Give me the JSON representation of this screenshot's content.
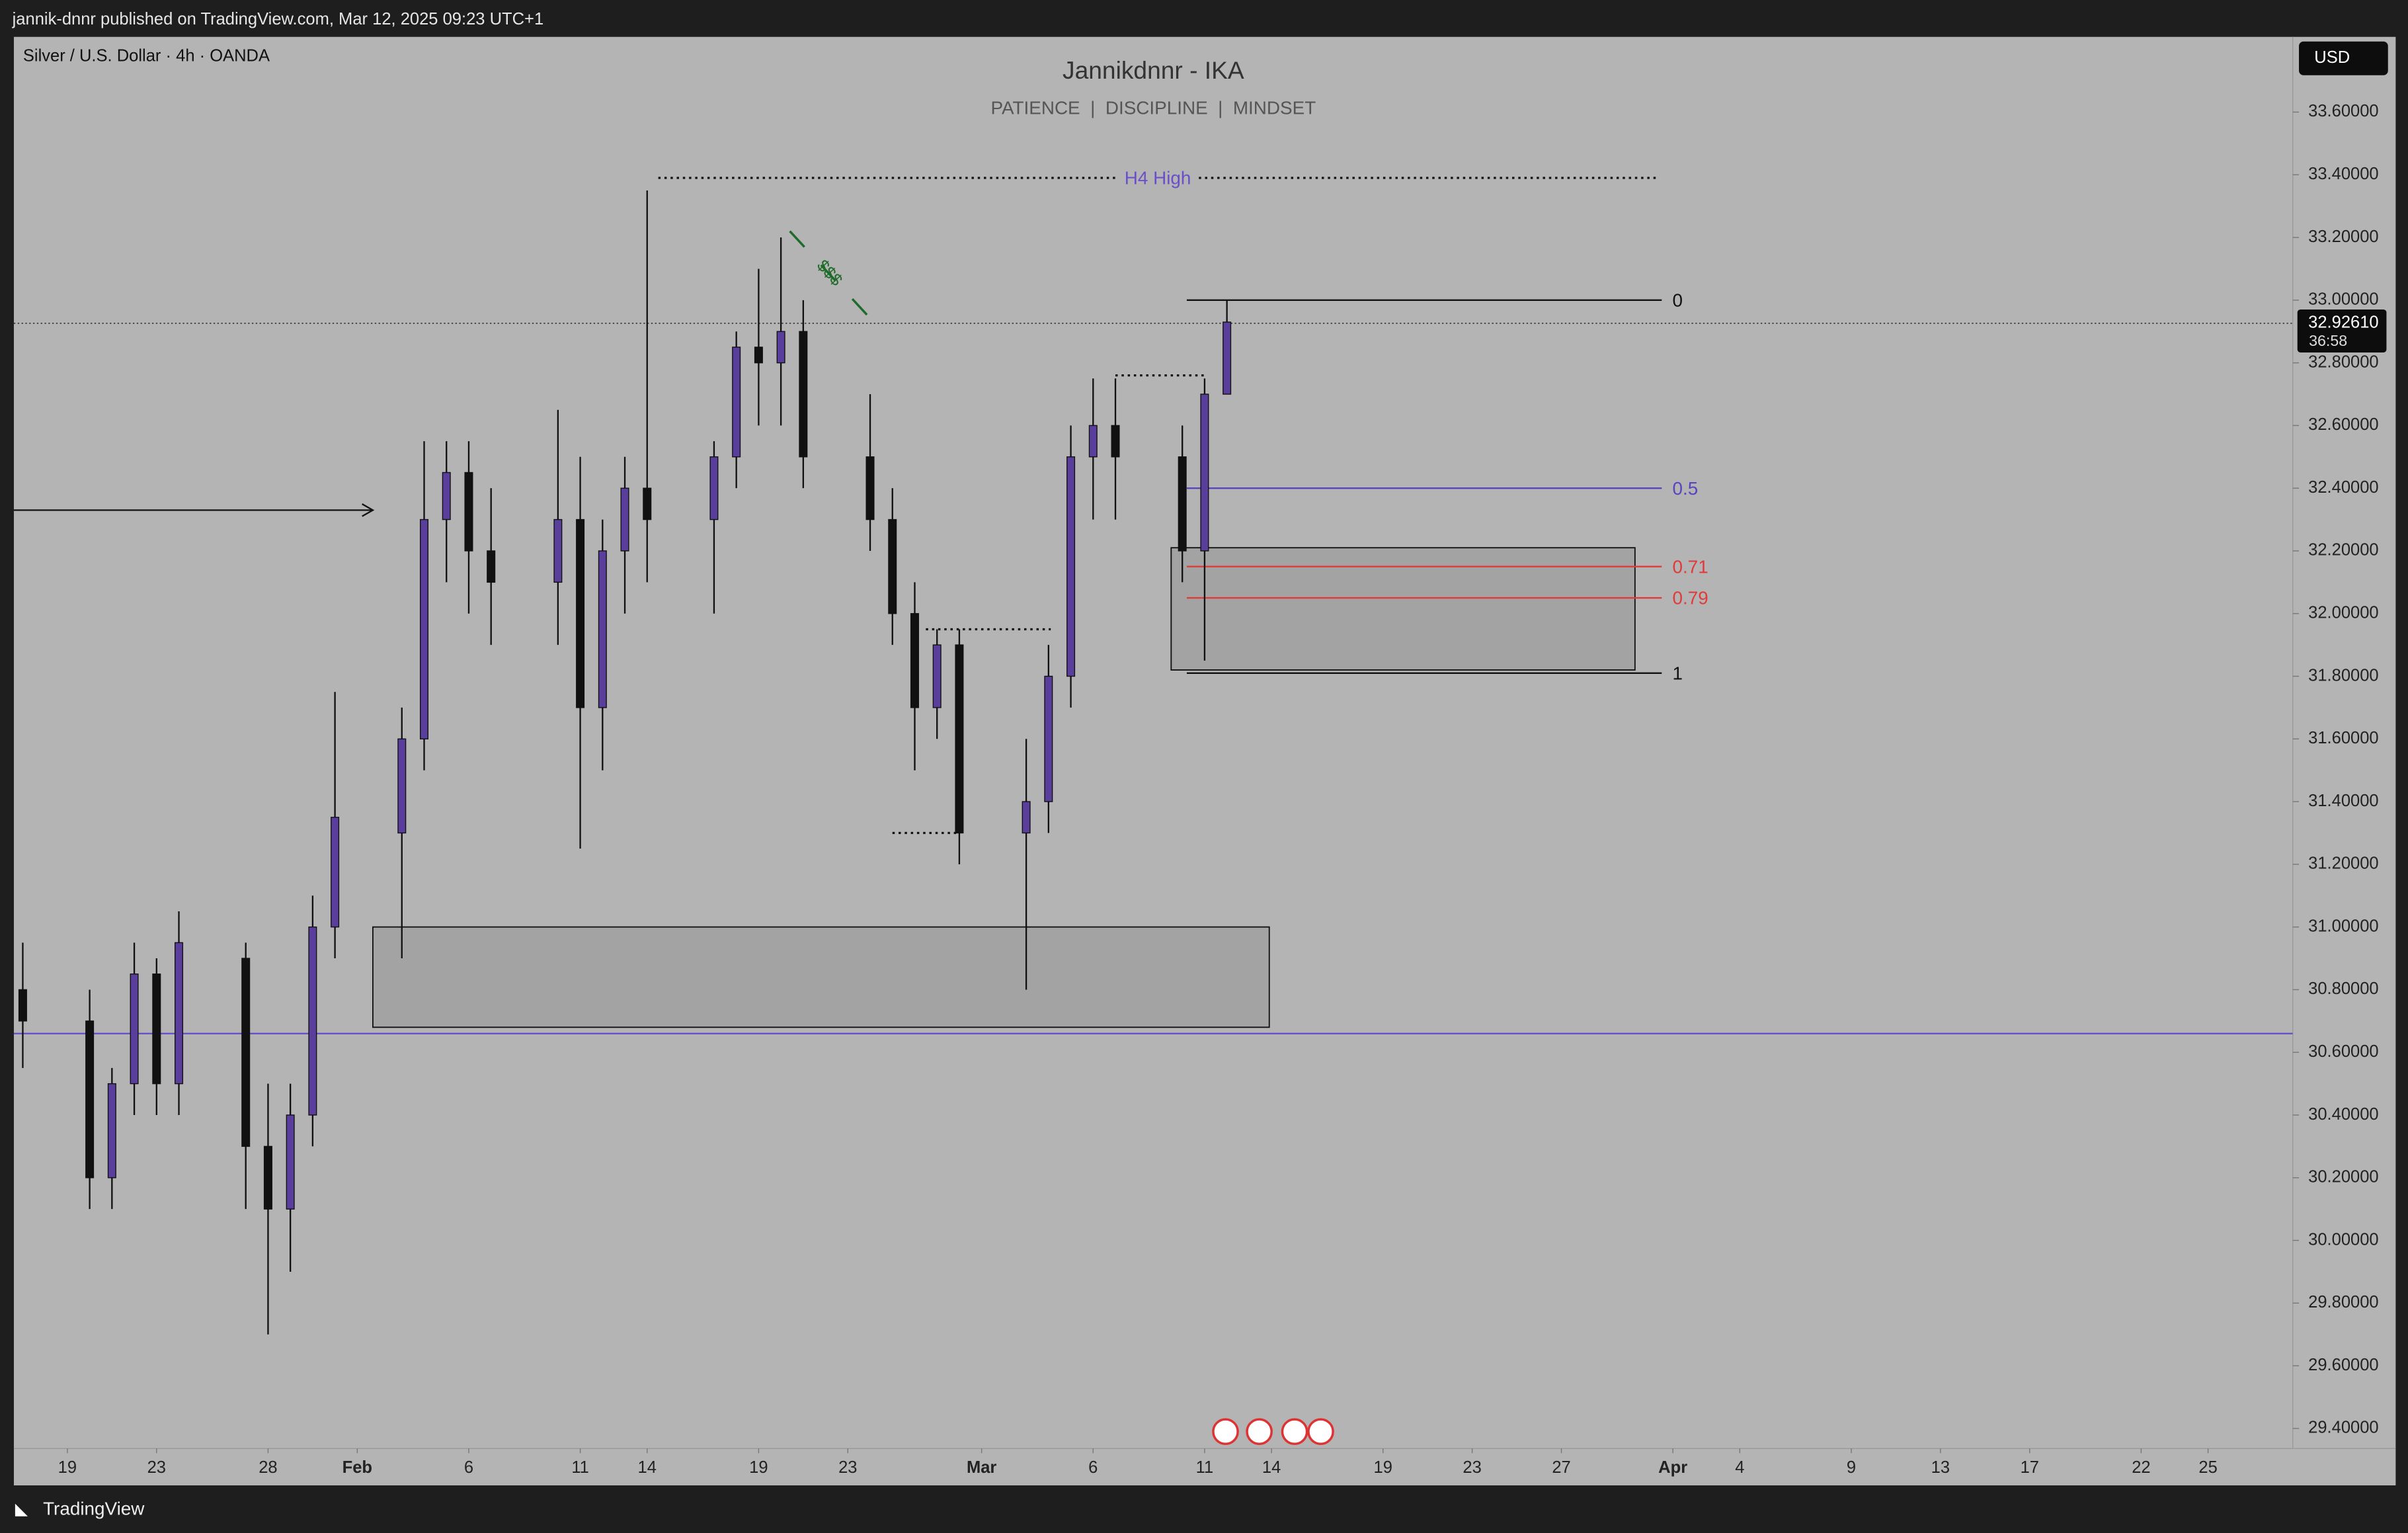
{
  "header": "jannik-dnnr published on TradingView.com, Mar 12, 2025 09:23 UTC+1",
  "footer": "TradingView",
  "chart_data": {
    "type": "candlestick",
    "symbol": "Silver / U.S. Dollar · 4h · OANDA",
    "title": "Jannikdnnr - IKA",
    "subtitle": "PATIENCE  |  DISCIPLINE  |  MINDSET",
    "currency": "USD",
    "up_color": "#5a3e9c",
    "down_color": "#111111",
    "x": [
      17,
      20,
      21,
      22,
      23,
      24,
      27,
      28,
      29,
      30,
      31,
      34,
      35,
      36,
      37,
      38,
      41,
      42,
      43,
      44,
      45,
      48,
      49,
      50,
      51,
      52,
      55,
      56,
      57,
      58,
      59,
      62,
      63,
      64,
      65,
      66,
      69,
      70,
      71
    ],
    "open": [
      30.8,
      30.7,
      30.2,
      30.5,
      30.85,
      30.5,
      30.9,
      30.3,
      30.1,
      30.4,
      31.0,
      31.3,
      31.6,
      32.3,
      32.45,
      32.2,
      32.1,
      32.3,
      31.7,
      32.2,
      32.4,
      32.3,
      32.5,
      32.85,
      32.8,
      32.9,
      32.5,
      32.3,
      32.0,
      31.7,
      31.9,
      31.3,
      31.4,
      31.8,
      32.5,
      32.6,
      32.5,
      32.2,
      32.7
    ],
    "high": [
      30.95,
      30.8,
      30.55,
      30.95,
      30.9,
      31.05,
      30.95,
      30.5,
      30.5,
      31.1,
      31.75,
      31.7,
      32.55,
      32.55,
      32.55,
      32.4,
      32.65,
      32.5,
      32.3,
      32.5,
      33.35,
      32.55,
      32.9,
      33.1,
      33.2,
      33.0,
      32.7,
      32.4,
      32.1,
      31.95,
      31.95,
      31.6,
      31.9,
      32.6,
      32.75,
      32.75,
      32.6,
      32.75,
      33.0
    ],
    "low": [
      30.55,
      30.1,
      30.1,
      30.4,
      30.4,
      30.4,
      30.1,
      29.7,
      29.9,
      30.3,
      30.9,
      30.9,
      31.5,
      32.1,
      32.0,
      31.9,
      31.9,
      31.25,
      31.5,
      32.0,
      32.1,
      32.0,
      32.4,
      32.6,
      32.6,
      32.4,
      32.2,
      31.9,
      31.5,
      31.6,
      31.2,
      30.8,
      31.3,
      31.7,
      32.3,
      32.3,
      32.1,
      31.85,
      32.7
    ],
    "close": [
      30.7,
      30.2,
      30.5,
      30.85,
      30.5,
      30.95,
      30.3,
      30.1,
      30.4,
      31.0,
      31.35,
      31.6,
      32.3,
      32.45,
      32.2,
      32.1,
      32.3,
      31.7,
      32.2,
      32.4,
      32.3,
      32.5,
      32.85,
      32.8,
      32.9,
      32.5,
      32.3,
      32.0,
      31.7,
      31.9,
      31.3,
      31.4,
      31.8,
      32.5,
      32.6,
      32.5,
      32.2,
      32.7,
      32.93
    ],
    "xlim": [
      16.6,
      118.8
    ],
    "xticks": [
      {
        "value": 19,
        "label": "19"
      },
      {
        "value": 23,
        "label": "23"
      },
      {
        "value": 28,
        "label": "28"
      },
      {
        "value": 32,
        "label": "Feb"
      },
      {
        "value": 37,
        "label": "6"
      },
      {
        "value": 42,
        "label": "11"
      },
      {
        "value": 45,
        "label": "14"
      },
      {
        "value": 50,
        "label": "19"
      },
      {
        "value": 54,
        "label": "23"
      },
      {
        "value": 60,
        "label": "Mar"
      },
      {
        "value": 65,
        "label": "6"
      },
      {
        "value": 70,
        "label": "11"
      },
      {
        "value": 73,
        "label": "14"
      },
      {
        "value": 78,
        "label": "19"
      },
      {
        "value": 82,
        "label": "23"
      },
      {
        "value": 86,
        "label": "27"
      },
      {
        "value": 91,
        "label": "Apr"
      },
      {
        "value": 94,
        "label": "4"
      },
      {
        "value": 99,
        "label": "9"
      },
      {
        "value": 103,
        "label": "13"
      },
      {
        "value": 107,
        "label": "17"
      },
      {
        "value": 112,
        "label": "22"
      },
      {
        "value": 115,
        "label": "25"
      }
    ],
    "ylim": [
      29.336,
      33.84
    ],
    "yticks": [
      {
        "value": 29.4,
        "label": "29.40000"
      },
      {
        "value": 29.6,
        "label": "29.60000"
      },
      {
        "value": 29.8,
        "label": "29.80000"
      },
      {
        "value": 30.0,
        "label": "30.00000"
      },
      {
        "value": 30.2,
        "label": "30.20000"
      },
      {
        "value": 30.4,
        "label": "30.40000"
      },
      {
        "value": 30.6,
        "label": "30.60000"
      },
      {
        "value": 30.8,
        "label": "30.80000"
      },
      {
        "value": 31.0,
        "label": "31.00000"
      },
      {
        "value": 31.2,
        "label": "31.20000"
      },
      {
        "value": 31.4,
        "label": "31.40000"
      },
      {
        "value": 31.6,
        "label": "31.60000"
      },
      {
        "value": 31.8,
        "label": "31.80000"
      },
      {
        "value": 32.0,
        "label": "32.00000"
      },
      {
        "value": 32.2,
        "label": "32.20000"
      },
      {
        "value": 32.4,
        "label": "32.40000"
      },
      {
        "value": 32.6,
        "label": "32.60000"
      },
      {
        "value": 32.8,
        "label": "32.80000"
      },
      {
        "value": 33.0,
        "label": "33.00000"
      },
      {
        "value": 33.2,
        "label": "33.20000"
      },
      {
        "value": 33.4,
        "label": "33.40000"
      },
      {
        "value": 33.6,
        "label": "33.60000"
      }
    ],
    "last_price": {
      "value": 32.9261,
      "label": "32.92610"
    },
    "countdown": "36:58",
    "h4_high": {
      "label": "H4 High",
      "value": 33.39,
      "x": [
        45.5,
        90.3
      ],
      "color": "#6a4fc8"
    },
    "fib": {
      "x": [
        69.2,
        90.5
      ],
      "levels": [
        {
          "label": "0",
          "value": 33.0,
          "color": "#111111"
        },
        {
          "label": "0.5",
          "value": 32.4,
          "color": "#5a44c0"
        },
        {
          "label": "0.71",
          "value": 32.15,
          "color": "#e03b3b"
        },
        {
          "label": "0.79",
          "value": 32.05,
          "color": "#e03b3b"
        },
        {
          "label": "1",
          "value": 31.81,
          "color": "#111111"
        }
      ]
    },
    "zones": [
      {
        "x": [
          32.7,
          72.9
        ],
        "y": [
          30.68,
          31.0
        ]
      },
      {
        "x": [
          68.5,
          89.3
        ],
        "y": [
          31.82,
          32.21
        ]
      }
    ],
    "support_line": {
      "value": 30.66,
      "color": "#6a4fc8"
    },
    "arrow": {
      "value": 32.33,
      "x": [
        16.6,
        32.7
      ]
    },
    "dotted_lines": [
      {
        "value": 32.76,
        "x": [
          66.0,
          70.0
        ]
      },
      {
        "value": 31.95,
        "x": [
          57.5,
          63.1
        ]
      },
      {
        "value": 31.3,
        "x": [
          56.0,
          58.9
        ]
      }
    ],
    "liquidity": {
      "text": "$$$",
      "color": "#1f6b2a",
      "x": [
        51.4,
        54.9
      ],
      "y": [
        33.22,
        32.95
      ]
    }
  }
}
